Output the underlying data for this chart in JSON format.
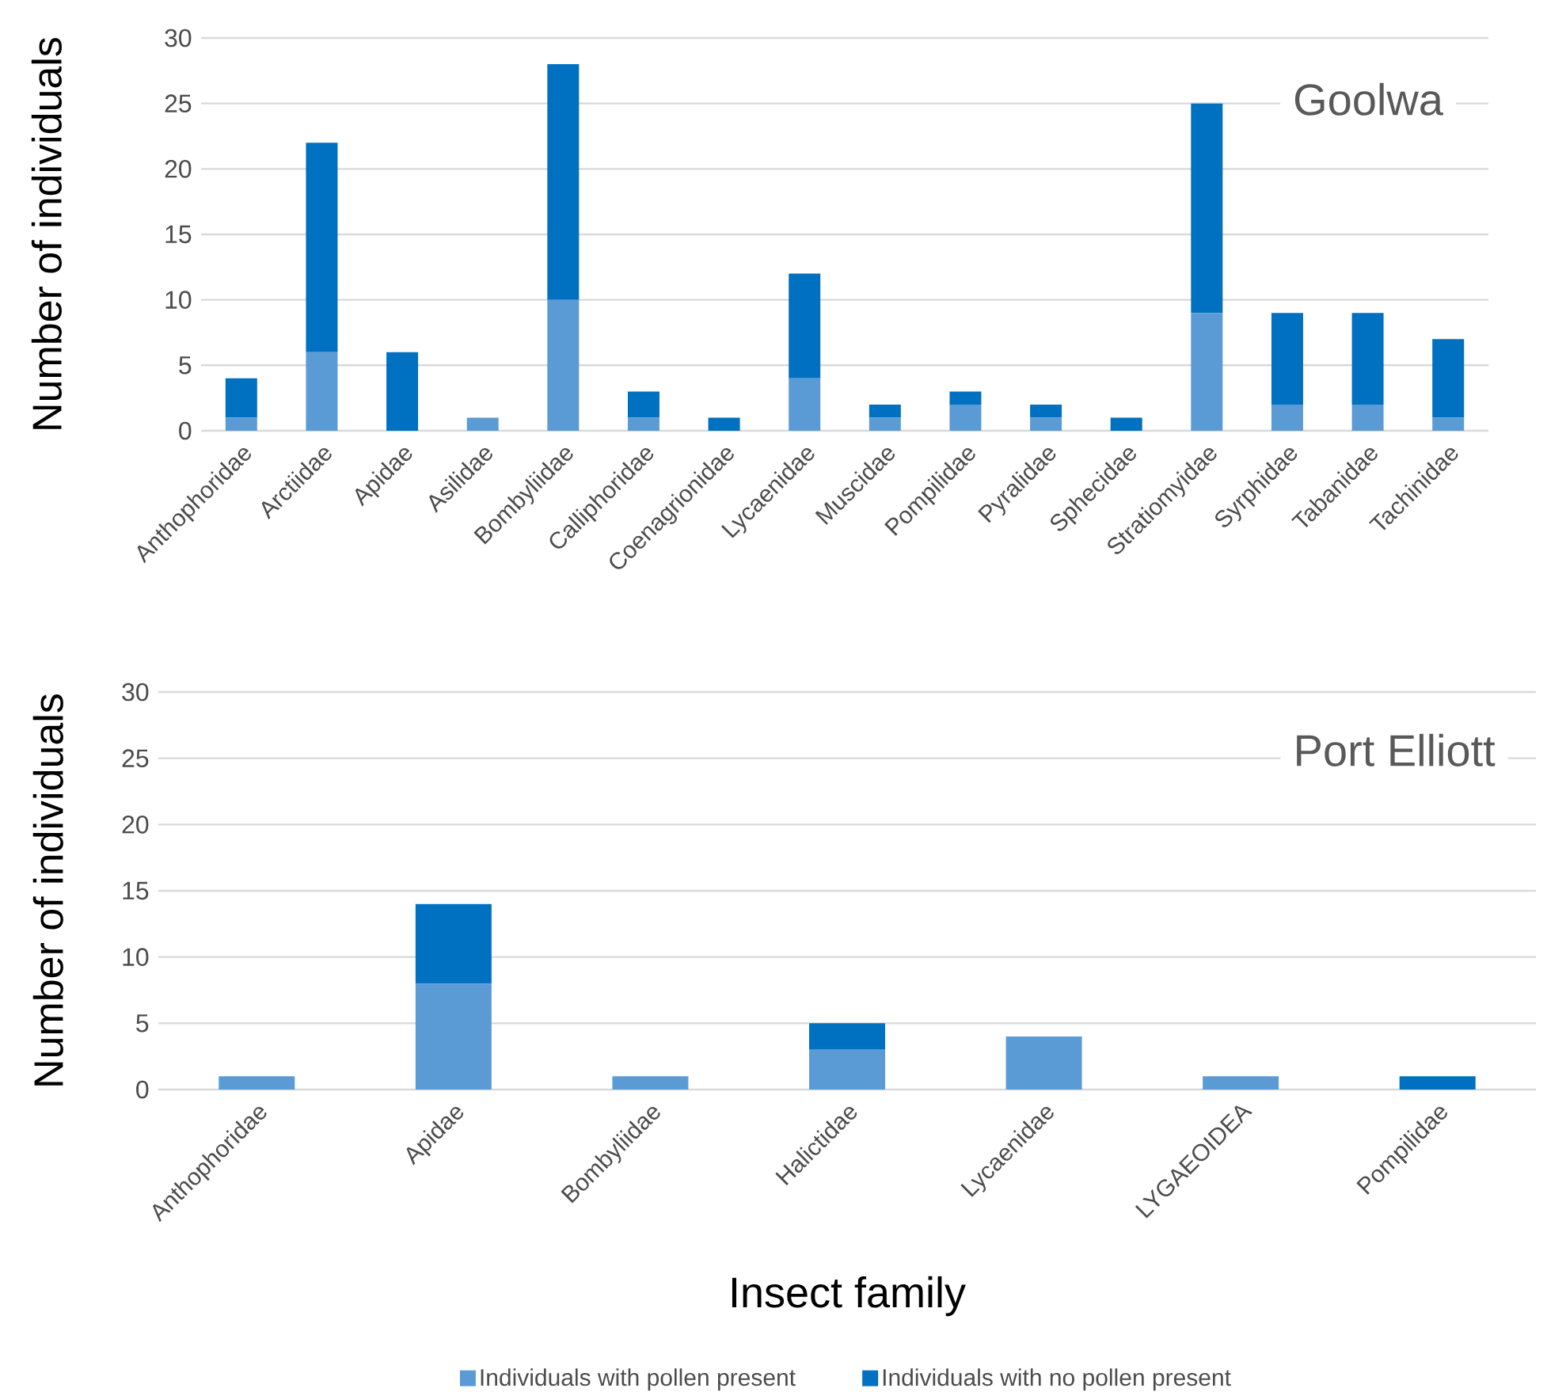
{
  "chart_data": [
    {
      "type": "bar",
      "title": "Goolwa",
      "ylabel": "Number of individuals",
      "stacked": true,
      "grid": "y",
      "legend": false,
      "categories": [
        "Anthophoridae",
        "Arctiidae",
        "Apidae",
        "Asilidae",
        "Bombyliidae",
        "Calliphoridae",
        "Coenagrionidae",
        "Lycaenidae",
        "Muscidae",
        "Pompilidae",
        "Pyralidae",
        "Sphecidae",
        "Stratiomyidae",
        "Syrphidae",
        "Tabanidae",
        "Tachinidae"
      ],
      "series": [
        {
          "color": "#5b9bd5",
          "values": [
            1,
            6,
            0,
            1,
            10,
            1,
            0,
            4,
            1,
            2,
            1,
            0,
            9,
            2,
            2,
            1
          ]
        },
        {
          "color": "#0070c0",
          "values": [
            3,
            16,
            6,
            0,
            18,
            2,
            1,
            8,
            1,
            1,
            1,
            1,
            16,
            7,
            7,
            6
          ]
        }
      ],
      "ylim": [
        0,
        30
      ],
      "yticks": [
        0,
        5,
        10,
        15,
        20,
        25,
        30
      ]
    },
    {
      "type": "bar",
      "title": "Port Elliott",
      "ylabel": "Number of individuals",
      "xlabel": "Insect family",
      "stacked": true,
      "grid": "y",
      "legend": "bottom",
      "categories": [
        "Anthophoridae",
        "Apidae",
        "Bombyliidae",
        "Halictidae",
        "Lycaenidae",
        "LYGAEOIDEA",
        "Pompilidae"
      ],
      "series": [
        {
          "name": "Individuals with pollen present",
          "color": "#5b9bd5",
          "values": [
            1,
            8,
            1,
            3,
            4,
            1,
            0
          ]
        },
        {
          "name": "Individuals with no pollen present",
          "color": "#0070c0",
          "values": [
            0,
            6,
            0,
            2,
            0,
            0,
            1
          ]
        }
      ],
      "ylim": [
        0,
        30
      ],
      "yticks": [
        0,
        5,
        10,
        15,
        20,
        25,
        30
      ]
    }
  ]
}
